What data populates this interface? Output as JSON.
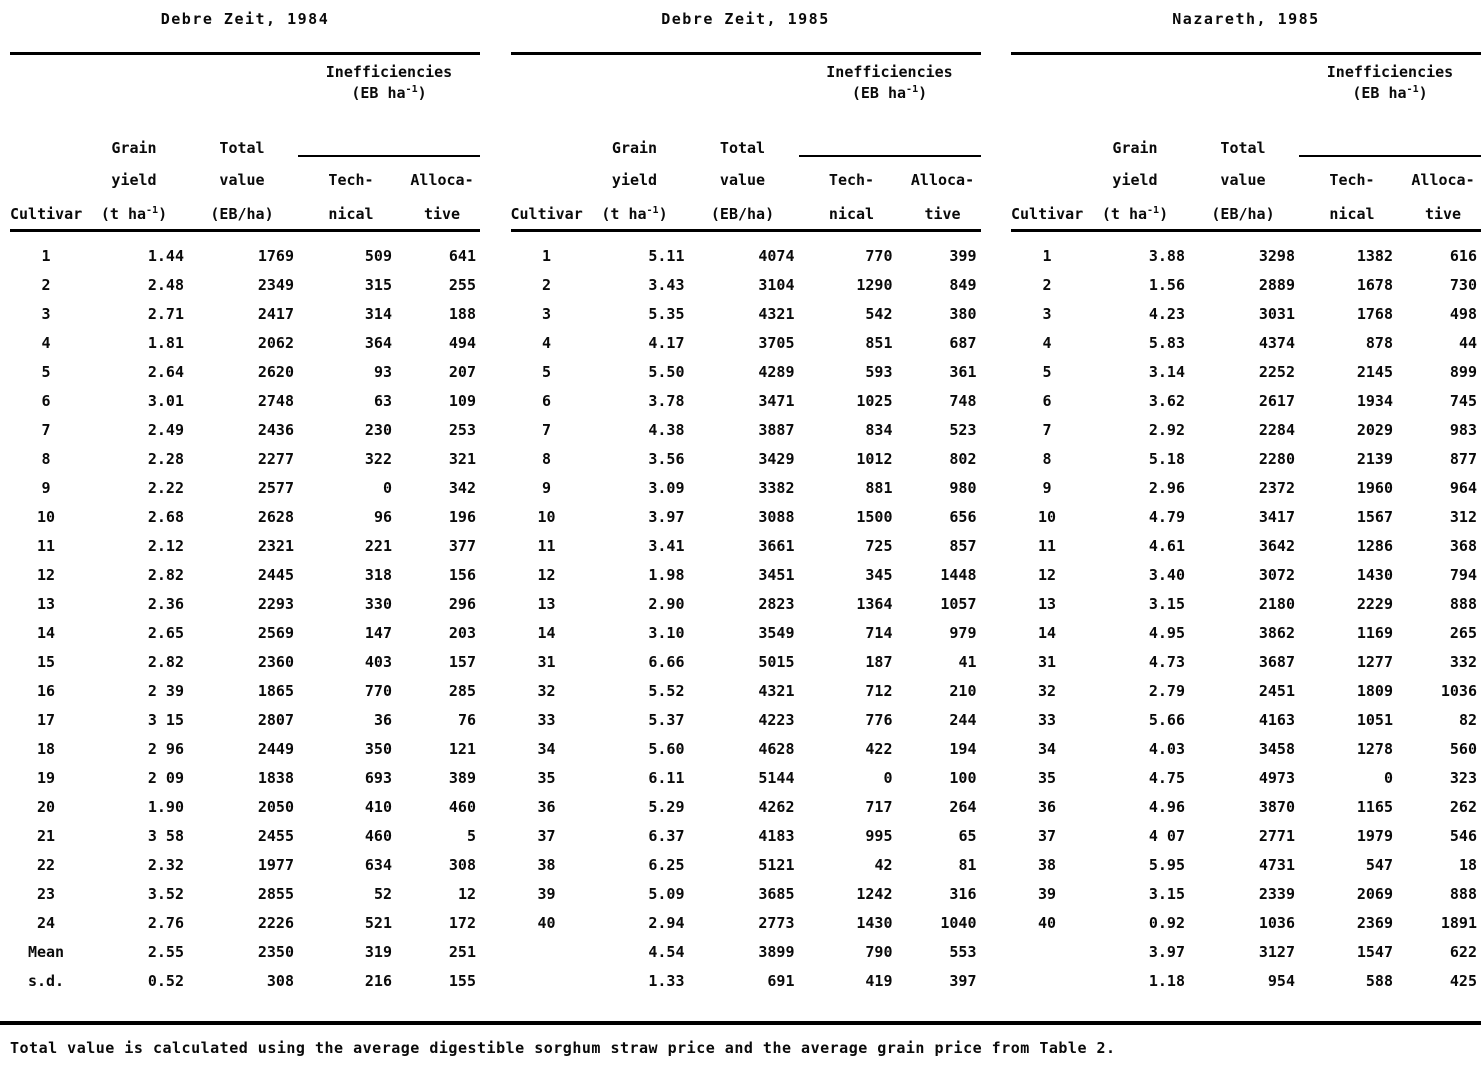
{
  "columns": {
    "cultivar": "Cultivar",
    "grain_top": "Grain",
    "grain_mid": "yield",
    "grain_unit_pre": "(t ha",
    "unit_sup": "-1",
    "grain_unit_post": ")",
    "total_top": "Total",
    "total_mid": "value",
    "total_unit": "(EB/ha)",
    "ineff_title": "Inefficiencies",
    "ineff_unit_pre": "(EB ha",
    "ineff_unit_post": ")",
    "tech_top": "Tech-",
    "tech_bottom": "nical",
    "alloc_top": "Alloca-",
    "alloc_bottom": "tive"
  },
  "panels": [
    {
      "title": "Debre Zeit, 1984",
      "rows": [
        [
          "1",
          "1.44",
          "1769",
          "509",
          "641"
        ],
        [
          "2",
          "2.48",
          "2349",
          "315",
          "255"
        ],
        [
          "3",
          "2.71",
          "2417",
          "314",
          "188"
        ],
        [
          "4",
          "1.81",
          "2062",
          "364",
          "494"
        ],
        [
          "5",
          "2.64",
          "2620",
          "93",
          "207"
        ],
        [
          "6",
          "3.01",
          "2748",
          "63",
          "109"
        ],
        [
          "7",
          "2.49",
          "2436",
          "230",
          "253"
        ],
        [
          "8",
          "2.28",
          "2277",
          "322",
          "321"
        ],
        [
          "9",
          "2.22",
          "2577",
          "0",
          "342"
        ],
        [
          "10",
          "2.68",
          "2628",
          "96",
          "196"
        ],
        [
          "11",
          "2.12",
          "2321",
          "221",
          "377"
        ],
        [
          "12",
          "2.82",
          "2445",
          "318",
          "156"
        ],
        [
          "13",
          "2.36",
          "2293",
          "330",
          "296"
        ],
        [
          "14",
          "2.65",
          "2569",
          "147",
          "203"
        ],
        [
          "15",
          "2.82",
          "2360",
          "403",
          "157"
        ],
        [
          "16",
          "2 39",
          "1865",
          "770",
          "285"
        ],
        [
          "17",
          "3 15",
          "2807",
          "36",
          "76"
        ],
        [
          "18",
          "2 96",
          "2449",
          "350",
          "121"
        ],
        [
          "19",
          "2 09",
          "1838",
          "693",
          "389"
        ],
        [
          "20",
          "1.90",
          "2050",
          "410",
          "460"
        ],
        [
          "21",
          "3 58",
          "2455",
          "460",
          "5"
        ],
        [
          "22",
          "2.32",
          "1977",
          "634",
          "308"
        ],
        [
          "23",
          "3.52",
          "2855",
          "52",
          "12"
        ],
        [
          "24",
          "2.76",
          "2226",
          "521",
          "172"
        ],
        [
          "Mean",
          "2.55",
          "2350",
          "319",
          "251"
        ],
        [
          "s.d.",
          "0.52",
          "308",
          "216",
          "155"
        ]
      ]
    },
    {
      "title": "Debre Zeit, 1985",
      "rows": [
        [
          "1",
          "5.11",
          "4074",
          "770",
          "399"
        ],
        [
          "2",
          "3.43",
          "3104",
          "1290",
          "849"
        ],
        [
          "3",
          "5.35",
          "4321",
          "542",
          "380"
        ],
        [
          "4",
          "4.17",
          "3705",
          "851",
          "687"
        ],
        [
          "5",
          "5.50",
          "4289",
          "593",
          "361"
        ],
        [
          "6",
          "3.78",
          "3471",
          "1025",
          "748"
        ],
        [
          "7",
          "4.38",
          "3887",
          "834",
          "523"
        ],
        [
          "8",
          "3.56",
          "3429",
          "1012",
          "802"
        ],
        [
          "9",
          "3.09",
          "3382",
          "881",
          "980"
        ],
        [
          "10",
          "3.97",
          "3088",
          "1500",
          "656"
        ],
        [
          "11",
          "3.41",
          "3661",
          "725",
          "857"
        ],
        [
          "12",
          "1.98",
          "3451",
          "345",
          "1448"
        ],
        [
          "13",
          "2.90",
          "2823",
          "1364",
          "1057"
        ],
        [
          "14",
          "3.10",
          "3549",
          "714",
          "979"
        ],
        [
          "31",
          "6.66",
          "5015",
          "187",
          "41"
        ],
        [
          "32",
          "5.52",
          "4321",
          "712",
          "210"
        ],
        [
          "33",
          "5.37",
          "4223",
          "776",
          "244"
        ],
        [
          "34",
          "5.60",
          "4628",
          "422",
          "194"
        ],
        [
          "35",
          "6.11",
          "5144",
          "0",
          "100"
        ],
        [
          "36",
          "5.29",
          "4262",
          "717",
          "264"
        ],
        [
          "37",
          "6.37",
          "4183",
          "995",
          "65"
        ],
        [
          "38",
          "6.25",
          "5121",
          "42",
          "81"
        ],
        [
          "39",
          "5.09",
          "3685",
          "1242",
          "316"
        ],
        [
          "40",
          "2.94",
          "2773",
          "1430",
          "1040"
        ],
        [
          "",
          "4.54",
          "3899",
          "790",
          "553"
        ],
        [
          "",
          "1.33",
          "691",
          "419",
          "397"
        ]
      ]
    },
    {
      "title": "Nazareth, 1985",
      "rows": [
        [
          "1",
          "3.88",
          "3298",
          "1382",
          "616"
        ],
        [
          "2",
          "1.56",
          "2889",
          "1678",
          "730"
        ],
        [
          "3",
          "4.23",
          "3031",
          "1768",
          "498"
        ],
        [
          "4",
          "5.83",
          "4374",
          "878",
          "44"
        ],
        [
          "5",
          "3.14",
          "2252",
          "2145",
          "899"
        ],
        [
          "6",
          "3.62",
          "2617",
          "1934",
          "745"
        ],
        [
          "7",
          "2.92",
          "2284",
          "2029",
          "983"
        ],
        [
          "8",
          "5.18",
          "2280",
          "2139",
          "877"
        ],
        [
          "9",
          "2.96",
          "2372",
          "1960",
          "964"
        ],
        [
          "10",
          "4.79",
          "3417",
          "1567",
          "312"
        ],
        [
          "11",
          "4.61",
          "3642",
          "1286",
          "368"
        ],
        [
          "12",
          "3.40",
          "3072",
          "1430",
          "794"
        ],
        [
          "13",
          "3.15",
          "2180",
          "2229",
          "888"
        ],
        [
          "14",
          "4.95",
          "3862",
          "1169",
          "265"
        ],
        [
          "31",
          "4.73",
          "3687",
          "1277",
          "332"
        ],
        [
          "32",
          "2.79",
          "2451",
          "1809",
          "1036"
        ],
        [
          "33",
          "5.66",
          "4163",
          "1051",
          "82"
        ],
        [
          "34",
          "4.03",
          "3458",
          "1278",
          "560"
        ],
        [
          "35",
          "4.75",
          "4973",
          "0",
          "323"
        ],
        [
          "36",
          "4.96",
          "3870",
          "1165",
          "262"
        ],
        [
          "37",
          "4 07",
          "2771",
          "1979",
          "546"
        ],
        [
          "38",
          "5.95",
          "4731",
          "547",
          "18"
        ],
        [
          "39",
          "3.15",
          "2339",
          "2069",
          "888"
        ],
        [
          "40",
          "0.92",
          "1036",
          "2369",
          "1891"
        ],
        [
          "",
          "3.97",
          "3127",
          "1547",
          "622"
        ],
        [
          "",
          "1.18",
          "954",
          "588",
          "425"
        ]
      ]
    }
  ],
  "footnote": "Total value is calculated using the average digestible sorghum straw price and the average grain price from Table 2."
}
